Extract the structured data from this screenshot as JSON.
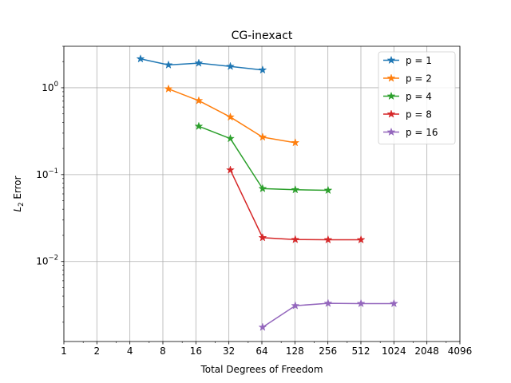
{
  "chart_data": {
    "type": "line",
    "title": "CG-inexact",
    "xlabel": "Total Degrees of Freedom",
    "ylabel_base": "L",
    "ylabel_sub": "2",
    "ylabel_rest": " Error",
    "x_scale": "log2",
    "y_scale": "log10",
    "xlim": [
      1,
      4096
    ],
    "ylim": [
      0.0012,
      3.0
    ],
    "x_ticks": [
      1,
      2,
      4,
      8,
      16,
      32,
      64,
      128,
      256,
      512,
      1024,
      2048,
      4096
    ],
    "x_tick_labels": [
      "1",
      "2",
      "4",
      "8",
      "16",
      "32",
      "64",
      "128",
      "256",
      "512",
      "1024",
      "2048",
      "4096"
    ],
    "y_ticks": [
      0.01,
      0.1,
      1
    ],
    "y_tick_labels": [
      {
        "base": "10",
        "exp": "−2"
      },
      {
        "base": "10",
        "exp": "−1"
      },
      {
        "base": "10",
        "exp": "0"
      }
    ],
    "grid": true,
    "legend_position": "top-right",
    "marker": "star",
    "series": [
      {
        "name": "p = 1",
        "color": "#1f77b4",
        "x": [
          5,
          9,
          17,
          33,
          65
        ],
        "y": [
          2.15,
          1.83,
          1.92,
          1.76,
          1.6
        ]
      },
      {
        "name": "p = 2",
        "color": "#ff7f0e",
        "x": [
          9,
          17,
          33,
          65,
          129
        ],
        "y": [
          0.97,
          0.71,
          0.46,
          0.27,
          0.233
        ]
      },
      {
        "name": "p = 4",
        "color": "#2ca02c",
        "x": [
          17,
          33,
          65,
          129,
          257
        ],
        "y": [
          0.36,
          0.26,
          0.069,
          0.067,
          0.066
        ]
      },
      {
        "name": "p = 8",
        "color": "#d62728",
        "x": [
          33,
          65,
          129,
          257,
          513
        ],
        "y": [
          0.113,
          0.0188,
          0.0179,
          0.0178,
          0.0178
        ]
      },
      {
        "name": "p = 16",
        "color": "#9467bd",
        "x": [
          65,
          129,
          257,
          513,
          1025
        ],
        "y": [
          0.00175,
          0.0031,
          0.0033,
          0.00328,
          0.00328
        ]
      }
    ]
  }
}
